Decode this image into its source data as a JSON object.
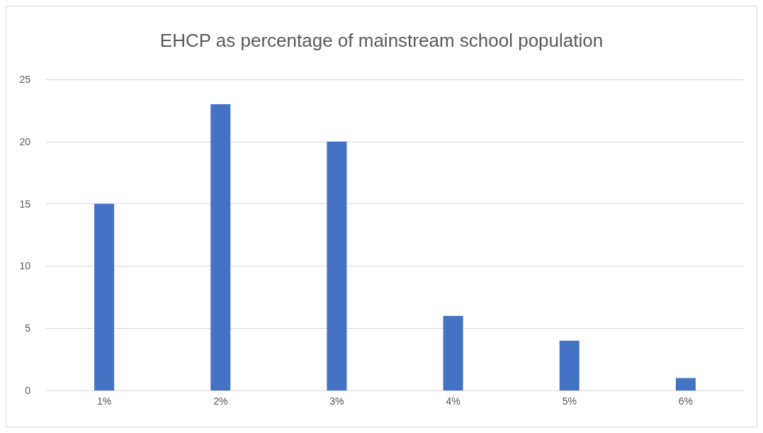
{
  "chart_data": {
    "type": "bar",
    "title": "EHCP as percentage of mainstream school population",
    "categories": [
      "1%",
      "2%",
      "3%",
      "4%",
      "5%",
      "6%"
    ],
    "values": [
      15,
      23,
      20,
      6,
      4,
      1
    ],
    "color": "#4472c4",
    "ylim": [
      0,
      25
    ],
    "yticks": [
      0,
      5,
      10,
      15,
      20,
      25
    ],
    "grid": "y"
  }
}
